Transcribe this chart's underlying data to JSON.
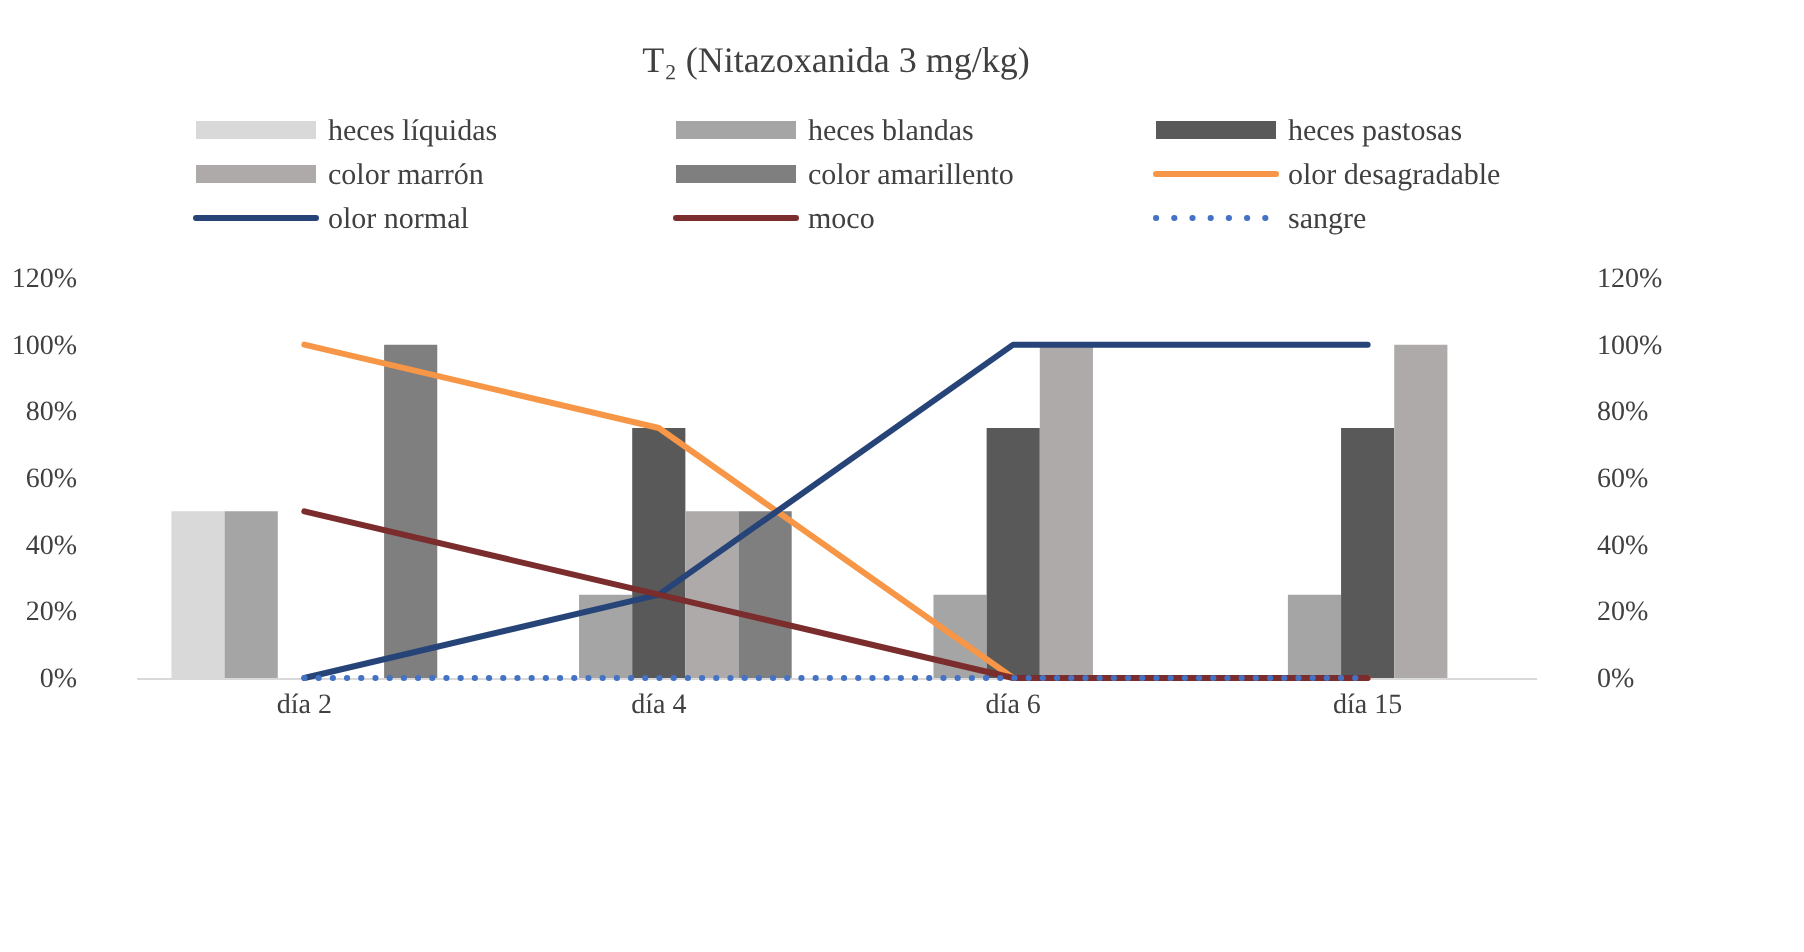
{
  "chart_data": {
    "type": "bar",
    "title": "T₂ (Nitazoxanida 3 mg/kg)",
    "categories": [
      "día 2",
      "día 4",
      "día 6",
      "día 15"
    ],
    "series": [
      {
        "name": "heces líquidas",
        "color": "#d9d9d9",
        "values": [
          50,
          0,
          0,
          0
        ]
      },
      {
        "name": "heces blandas",
        "color": "#a5a5a5",
        "values": [
          50,
          25,
          25,
          25
        ]
      },
      {
        "name": "heces pastosas",
        "color": "#595959",
        "values": [
          0,
          75,
          75,
          75
        ]
      },
      {
        "name": "color marrón",
        "color": "#aeaaaa",
        "values": [
          0,
          50,
          100,
          100
        ]
      },
      {
        "name": "color amarillento",
        "color": "#7f7f7f",
        "values": [
          100,
          50,
          0,
          0
        ]
      },
      {
        "name": "olor desagradable",
        "type": "line",
        "axis": "y2",
        "color": "#f79646",
        "line_style": "solid",
        "values": [
          100,
          75,
          0,
          0
        ]
      },
      {
        "name": "olor normal",
        "type": "line",
        "axis": "y2",
        "color": "#264478",
        "line_style": "solid",
        "values": [
          0,
          25,
          100,
          100
        ]
      },
      {
        "name": "moco",
        "type": "line",
        "axis": "y2",
        "color": "#7b2c2c",
        "line_style": "solid",
        "values": [
          50,
          25,
          0,
          0
        ]
      },
      {
        "name": "sangre",
        "type": "line",
        "axis": "y2",
        "color": "#4472c4",
        "line_style": "dotted",
        "values": [
          0,
          0,
          0,
          0
        ]
      }
    ],
    "ylim": [
      0,
      120
    ],
    "yticks": [
      {
        "value": 0,
        "label": "0%"
      },
      {
        "value": 20,
        "label": "20%"
      },
      {
        "value": 40,
        "label": "40%"
      },
      {
        "value": 60,
        "label": "60%"
      },
      {
        "value": 80,
        "label": "80%"
      },
      {
        "value": 100,
        "label": "100%"
      },
      {
        "value": 120,
        "label": "120%"
      }
    ],
    "y2lim": [
      0,
      120
    ],
    "y2ticks": [
      {
        "value": 0,
        "label": "0%"
      },
      {
        "value": 20,
        "label": "20%"
      },
      {
        "value": 40,
        "label": "40%"
      },
      {
        "value": 60,
        "label": "60%"
      },
      {
        "value": 80,
        "label": "80%"
      },
      {
        "value": 100,
        "label": "100%"
      },
      {
        "value": 120,
        "label": "120%"
      }
    ],
    "grid": false,
    "legend": "top"
  }
}
